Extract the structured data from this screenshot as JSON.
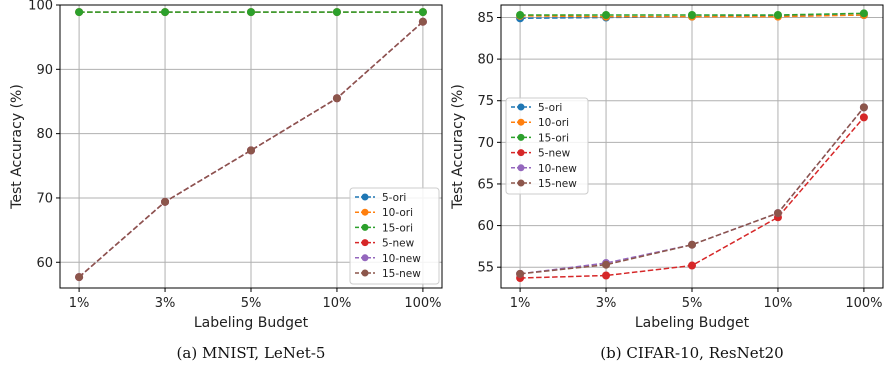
{
  "chart_data": [
    {
      "type": "line",
      "caption": "(a)  MNIST, LeNet-5",
      "xlabel": "Labeling Budget",
      "ylabel": "Test Accuracy (%)",
      "categories": [
        "1%",
        "3%",
        "5%",
        "10%",
        "100%"
      ],
      "ylim": [
        56,
        100
      ],
      "yticks": [
        60,
        70,
        80,
        90,
        100
      ],
      "grid": true,
      "legend_position": "lower-right",
      "series": [
        {
          "name": "5-ori",
          "color": "#1f77b4",
          "values": [
            98.9,
            98.9,
            98.9,
            98.9,
            98.9
          ]
        },
        {
          "name": "10-ori",
          "color": "#ff7f0e",
          "values": [
            98.9,
            98.9,
            98.9,
            98.9,
            98.9
          ]
        },
        {
          "name": "15-ori",
          "color": "#2ca02c",
          "values": [
            98.9,
            98.9,
            98.9,
            98.9,
            98.9
          ]
        },
        {
          "name": "5-new",
          "color": "#d62728",
          "values": [
            57.7,
            69.4,
            77.4,
            85.5,
            97.4
          ]
        },
        {
          "name": "10-new",
          "color": "#9467bd",
          "values": [
            57.7,
            69.4,
            77.4,
            85.5,
            97.4
          ]
        },
        {
          "name": "15-new",
          "color": "#8c564b",
          "values": [
            57.7,
            69.4,
            77.4,
            85.5,
            97.4
          ]
        }
      ]
    },
    {
      "type": "line",
      "caption": "(b)  CIFAR-10, ResNet20",
      "xlabel": "Labeling Budget",
      "ylabel": "Test Accuracy (%)",
      "categories": [
        "1%",
        "3%",
        "5%",
        "10%",
        "100%"
      ],
      "ylim": [
        52.5,
        86.5
      ],
      "yticks": [
        55,
        60,
        65,
        70,
        75,
        80,
        85
      ],
      "grid": true,
      "legend_position": "center-left",
      "series": [
        {
          "name": "5-ori",
          "color": "#1f77b4",
          "values": [
            84.9,
            85.0,
            85.1,
            85.2,
            85.3
          ]
        },
        {
          "name": "10-ori",
          "color": "#ff7f0e",
          "values": [
            85.2,
            85.1,
            85.1,
            85.1,
            85.3
          ]
        },
        {
          "name": "15-ori",
          "color": "#2ca02c",
          "values": [
            85.3,
            85.3,
            85.3,
            85.3,
            85.5
          ]
        },
        {
          "name": "5-new",
          "color": "#d62728",
          "values": [
            53.7,
            54.0,
            55.2,
            61.0,
            73.0
          ]
        },
        {
          "name": "10-new",
          "color": "#9467bd",
          "values": [
            54.2,
            55.5,
            57.7,
            61.5,
            74.2
          ]
        },
        {
          "name": "15-new",
          "color": "#8c564b",
          "values": [
            54.2,
            55.3,
            57.7,
            61.5,
            74.2
          ]
        }
      ]
    }
  ]
}
